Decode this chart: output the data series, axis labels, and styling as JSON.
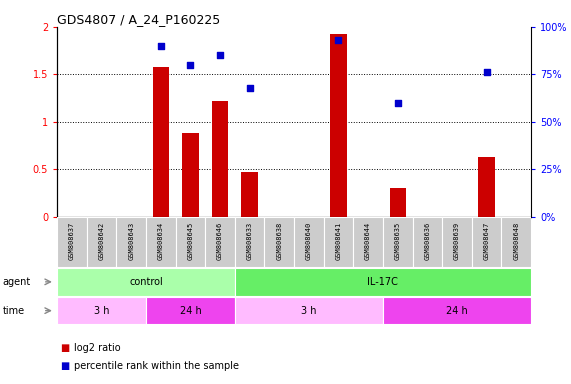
{
  "title": "GDS4807 / A_24_P160225",
  "samples": [
    "GSM808637",
    "GSM808642",
    "GSM808643",
    "GSM808634",
    "GSM808645",
    "GSM808646",
    "GSM808633",
    "GSM808638",
    "GSM808640",
    "GSM808641",
    "GSM808644",
    "GSM808635",
    "GSM808636",
    "GSM808639",
    "GSM808647",
    "GSM808648"
  ],
  "log2_ratio": [
    0,
    0,
    0,
    1.58,
    0.88,
    1.22,
    0.47,
    0,
    0,
    1.93,
    0,
    0.3,
    0,
    0,
    0.63,
    0
  ],
  "percentile": [
    null,
    null,
    null,
    90,
    80,
    85,
    68,
    null,
    null,
    93,
    null,
    60,
    null,
    null,
    76,
    null
  ],
  "bar_color": "#cc0000",
  "scatter_color": "#0000cc",
  "ylim_left": [
    0,
    2
  ],
  "ylim_right": [
    0,
    100
  ],
  "yticks_left": [
    0,
    0.5,
    1.0,
    1.5,
    2.0
  ],
  "yticks_right": [
    0,
    25,
    50,
    75,
    100
  ],
  "ytick_labels_left": [
    "0",
    "0.5",
    "1",
    "1.5",
    "2"
  ],
  "ytick_labels_right": [
    "0%",
    "25%",
    "50%",
    "75%",
    "100%"
  ],
  "agent_groups": [
    {
      "label": "control",
      "start": 0,
      "end": 6,
      "color": "#aaffaa"
    },
    {
      "label": "IL-17C",
      "start": 6,
      "end": 16,
      "color": "#66ee66"
    }
  ],
  "time_groups": [
    {
      "label": "3 h",
      "start": 0,
      "end": 3,
      "color": "#ffbbff"
    },
    {
      "label": "24 h",
      "start": 3,
      "end": 6,
      "color": "#ee44ee"
    },
    {
      "label": "3 h",
      "start": 6,
      "end": 11,
      "color": "#ffbbff"
    },
    {
      "label": "24 h",
      "start": 11,
      "end": 16,
      "color": "#ee44ee"
    }
  ],
  "legend_bar_label": "log2 ratio",
  "legend_scatter_label": "percentile rank within the sample",
  "background_color": "#ffffff",
  "bar_width": 0.55,
  "sample_box_color": "#cccccc",
  "agent_label_fontsize": 7,
  "time_label_fontsize": 7,
  "tick_fontsize": 7,
  "title_fontsize": 9,
  "sample_fontsize": 5,
  "legend_fontsize": 7
}
